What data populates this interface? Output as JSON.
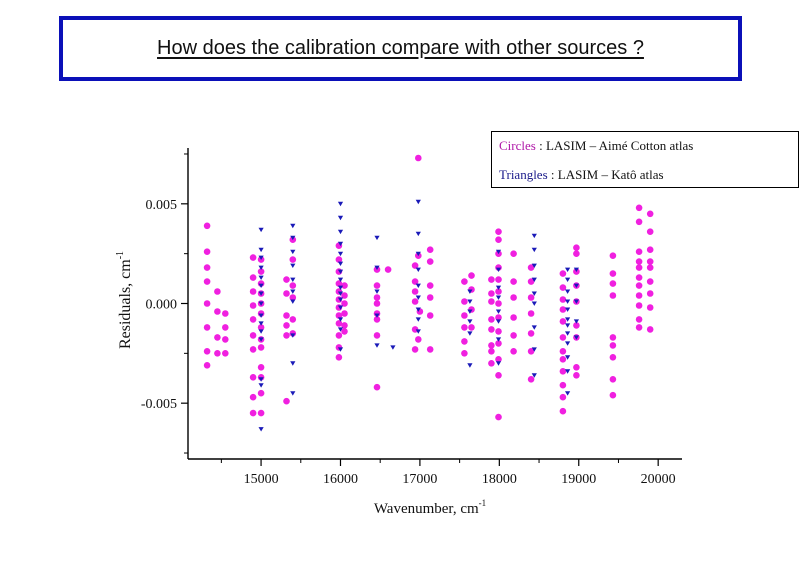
{
  "slide": {
    "title": "How does the calibration compare with other sources ?"
  },
  "legend": {
    "circles_key": "Circles",
    "circles_text": " : LASIM – Aimé Cotton atlas",
    "triangles_key": "Triangles",
    "triangles_text": " : LASIM – Katô atlas"
  },
  "colors": {
    "title_border": "#0b10b8",
    "circle": "#f020e0",
    "triangle": "#1a1ab8",
    "axis": "#000000"
  },
  "chart_data": {
    "type": "scatter",
    "xlabel": "Wavenumber, cm",
    "xlabel_sup": "-1",
    "ylabel": "Residuals, cm",
    "ylabel_sup": "-1",
    "xlim": [
      14080,
      20300
    ],
    "ylim": [
      -0.0078,
      0.0078
    ],
    "xticks": [
      15000,
      16000,
      17000,
      18000,
      19000,
      20000
    ],
    "xtick_labels": [
      "15000",
      "16000",
      "17000",
      "18000",
      "19000",
      "20000"
    ],
    "yticks": [
      -0.005,
      0.0,
      0.005
    ],
    "ytick_labels": [
      "-0.005",
      "0.000",
      "0.005"
    ],
    "series": [
      {
        "name": "Circles",
        "marker": "circle",
        "x": [
          14320,
          14320,
          14320,
          14320,
          14320,
          14320,
          14320,
          14320,
          14450,
          14450,
          14450,
          14450,
          14550,
          14550,
          14550,
          14550,
          14900,
          14900,
          14900,
          14900,
          14900,
          14900,
          14900,
          14900,
          14900,
          14900,
          15000,
          15000,
          15000,
          15000,
          15000,
          15000,
          15000,
          15000,
          15000,
          15000,
          15000,
          15000,
          15000,
          15320,
          15320,
          15320,
          15320,
          15320,
          15320,
          15400,
          15400,
          15400,
          15400,
          15400,
          15400,
          15980,
          15980,
          15980,
          15980,
          15980,
          15980,
          15980,
          15980,
          15980,
          15980,
          15980,
          15980,
          16050,
          16050,
          16050,
          16050,
          16050,
          16050,
          16460,
          16460,
          16460,
          16460,
          16460,
          16460,
          16460,
          16460,
          16600,
          16940,
          16940,
          16940,
          16940,
          16940,
          16940,
          16980,
          16980,
          16980,
          17000,
          17130,
          17130,
          17130,
          17130,
          17130,
          17130,
          17560,
          17560,
          17560,
          17560,
          17560,
          17560,
          17650,
          17650,
          17650,
          17650,
          17900,
          17900,
          17900,
          17900,
          17900,
          17900,
          17900,
          17900,
          17990,
          17990,
          17990,
          17990,
          17990,
          17990,
          17990,
          17990,
          17990,
          17990,
          17990,
          17990,
          17990,
          18180,
          18180,
          18180,
          18180,
          18180,
          18180,
          18400,
          18400,
          18400,
          18400,
          18400,
          18400,
          18400,
          18800,
          18800,
          18800,
          18800,
          18800,
          18800,
          18800,
          18800,
          18800,
          18800,
          18800,
          18800,
          18970,
          18970,
          18970,
          18970,
          18970,
          18970,
          18970,
          18970,
          18970,
          19430,
          19430,
          19430,
          19430,
          19430,
          19430,
          19430,
          19430,
          19430,
          19760,
          19760,
          19760,
          19760,
          19760,
          19760,
          19760,
          19760,
          19760,
          19760,
          19760,
          19900,
          19900,
          19900,
          19900,
          19900,
          19900,
          19900,
          19900,
          19900
        ],
        "y": [
          0.0039,
          0.0026,
          0.0018,
          0.0011,
          0.0,
          -0.0012,
          -0.0024,
          -0.0031,
          0.0006,
          -0.0004,
          -0.0017,
          -0.0025,
          -0.0005,
          -0.0012,
          -0.0018,
          -0.0025,
          0.0023,
          0.0013,
          0.0006,
          -0.0001,
          -0.0008,
          -0.0016,
          -0.0023,
          -0.0037,
          -0.0047,
          -0.0055,
          0.0022,
          0.0016,
          0.001,
          0.0005,
          0.0,
          -0.0005,
          -0.0012,
          -0.0018,
          -0.0022,
          -0.0032,
          -0.0037,
          -0.0045,
          -0.0055,
          0.0012,
          0.0005,
          -0.0006,
          -0.0011,
          -0.0016,
          -0.0049,
          0.0032,
          0.0022,
          0.0009,
          0.0003,
          -0.0008,
          -0.0015,
          0.0029,
          0.0022,
          0.0016,
          0.001,
          0.0006,
          0.0002,
          -0.0002,
          -0.0006,
          -0.001,
          -0.0016,
          -0.0022,
          -0.0027,
          0.0009,
          0.0004,
          0.0,
          -0.0005,
          -0.0011,
          -0.0014,
          0.0017,
          0.0009,
          0.0003,
          0.0,
          -0.0005,
          -0.0008,
          -0.0016,
          -0.0042,
          0.0017,
          0.0019,
          0.0011,
          0.0006,
          0.0001,
          -0.0013,
          -0.0023,
          0.0073,
          0.0024,
          -0.0018,
          -0.0004,
          0.0027,
          0.0021,
          0.0009,
          0.0003,
          -0.0006,
          -0.0023,
          0.0011,
          0.0001,
          -0.0006,
          -0.0012,
          -0.0019,
          -0.0025,
          0.0014,
          0.0007,
          -0.0003,
          -0.0012,
          0.0012,
          0.0005,
          0.0001,
          -0.0008,
          -0.0013,
          -0.0021,
          -0.0024,
          -0.003,
          0.0036,
          0.0032,
          0.0025,
          0.0018,
          0.0012,
          0.0006,
          0.0,
          -0.0007,
          -0.0014,
          -0.002,
          -0.0028,
          -0.0036,
          -0.0057,
          0.0025,
          0.0011,
          0.0003,
          -0.0007,
          -0.0016,
          -0.0024,
          0.0018,
          0.0011,
          0.0003,
          -0.0005,
          -0.0015,
          -0.0024,
          -0.0038,
          0.0015,
          0.0008,
          0.0002,
          -0.0003,
          -0.0009,
          -0.0017,
          -0.0024,
          -0.0028,
          -0.0034,
          -0.0041,
          -0.0047,
          -0.0054,
          0.0028,
          0.0025,
          0.0016,
          0.0009,
          0.0001,
          -0.0011,
          -0.0017,
          -0.0032,
          -0.0036,
          0.0024,
          0.0015,
          0.001,
          0.0004,
          -0.0017,
          -0.0021,
          -0.0027,
          -0.0038,
          -0.0046,
          0.0048,
          0.0041,
          0.0026,
          0.0021,
          0.0018,
          0.0013,
          0.0009,
          0.0004,
          -0.0001,
          -0.0008,
          -0.0012,
          0.0045,
          0.0036,
          0.0027,
          0.0021,
          0.0018,
          0.0011,
          0.0005,
          -0.0002,
          -0.0013
        ]
      },
      {
        "name": "Triangles",
        "marker": "triangle-down",
        "x": [
          15000,
          15000,
          15000,
          15000,
          15000,
          15000,
          15000,
          15000,
          15000,
          15000,
          15000,
          15000,
          15000,
          15000,
          15000,
          15400,
          15400,
          15400,
          15400,
          15400,
          15400,
          15400,
          15400,
          15400,
          15400,
          16000,
          16000,
          16000,
          16000,
          16000,
          16000,
          16000,
          16000,
          16000,
          16000,
          16000,
          16000,
          16000,
          16000,
          16000,
          16460,
          16460,
          16460,
          16460,
          16460,
          16660,
          16980,
          16980,
          16980,
          16980,
          16980,
          16980,
          16980,
          16980,
          16980,
          17630,
          17630,
          17630,
          17630,
          17630,
          17630,
          17990,
          17990,
          17990,
          17990,
          17990,
          17990,
          17990,
          17990,
          18440,
          18440,
          18440,
          18440,
          18440,
          18440,
          18440,
          18440,
          18440,
          18860,
          18860,
          18860,
          18860,
          18860,
          18860,
          18860,
          18860,
          18860,
          18860,
          18860,
          18860,
          18970,
          18970,
          18970,
          18970,
          18970
        ],
        "y": [
          0.0037,
          0.0027,
          0.0023,
          0.0018,
          0.0013,
          0.0009,
          0.0005,
          0.0,
          -0.0006,
          -0.001,
          -0.0014,
          -0.0018,
          -0.0038,
          -0.0041,
          -0.0063,
          0.0039,
          0.0033,
          0.0026,
          0.0019,
          0.0012,
          0.0006,
          0.0001,
          -0.0016,
          -0.003,
          -0.0045,
          0.005,
          0.0043,
          0.0036,
          0.003,
          0.0025,
          0.002,
          0.0016,
          0.0012,
          0.0008,
          0.0005,
          0.0002,
          -0.0002,
          -0.0008,
          -0.0013,
          -0.0023,
          0.0033,
          0.0018,
          0.0006,
          -0.0006,
          -0.0021,
          -0.0022,
          0.0051,
          0.0035,
          0.0025,
          0.0017,
          0.0009,
          0.0003,
          -0.0003,
          -0.0008,
          -0.0014,
          0.0006,
          0.0001,
          -0.0004,
          -0.0009,
          -0.0015,
          -0.0031,
          0.0026,
          0.0017,
          0.0008,
          0.0003,
          -0.0004,
          -0.0009,
          -0.0018,
          -0.003,
          0.0034,
          0.0027,
          0.0019,
          0.0012,
          0.0005,
          0.0,
          -0.0012,
          -0.0023,
          -0.0036,
          0.0017,
          0.0012,
          0.0006,
          0.0001,
          -0.0003,
          -0.0008,
          -0.0011,
          -0.0015,
          -0.002,
          -0.0027,
          -0.0034,
          -0.0045,
          0.0017,
          0.0009,
          0.0001,
          -0.0009,
          -0.0017
        ]
      }
    ]
  }
}
